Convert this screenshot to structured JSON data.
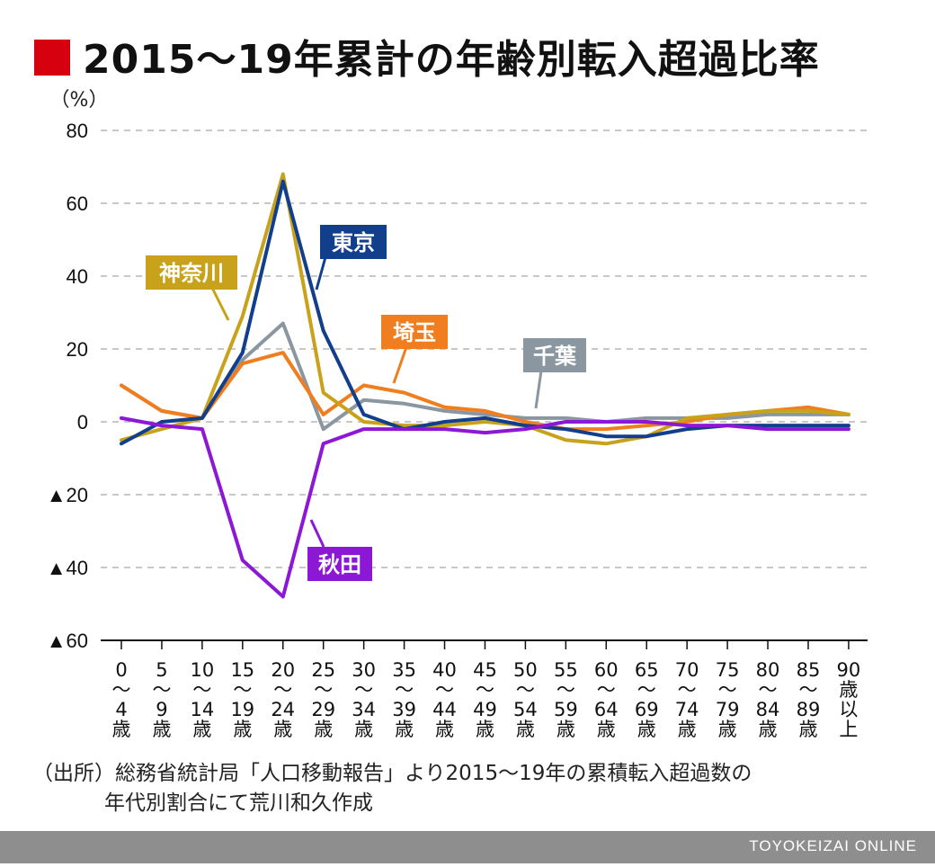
{
  "title": "2015〜19年累計の年齢別転入超過比率",
  "source": {
    "line1": "（出所）総務省統計局「人口移動報告」より2015〜19年の累積転入超過数の",
    "line2": "年代別割合にて荒川和久作成"
  },
  "footer": "TOYOKEIZAI ONLINE",
  "colors": {
    "title_marker": "#d7000f",
    "grid": "#b5b5b5",
    "footer_bg": "#8e8e8e"
  },
  "chart_data": {
    "type": "line",
    "ylabel": "（%）",
    "ylim": [
      -60,
      80
    ],
    "y_ticks": [
      80,
      60,
      40,
      20,
      0,
      -20,
      -40,
      -60
    ],
    "y_tick_labels": [
      "80",
      "60",
      "40",
      "20",
      "0",
      "▲20",
      "▲40",
      "▲60"
    ],
    "grid": "horizontal dashed",
    "categories": [
      [
        "0",
        "〜",
        "4",
        "歳"
      ],
      [
        "5",
        "〜",
        "9",
        "歳"
      ],
      [
        "10",
        "〜",
        "14",
        "歳"
      ],
      [
        "15",
        "〜",
        "19",
        "歳"
      ],
      [
        "20",
        "〜",
        "24",
        "歳"
      ],
      [
        "25",
        "〜",
        "29",
        "歳"
      ],
      [
        "30",
        "〜",
        "34",
        "歳"
      ],
      [
        "35",
        "〜",
        "39",
        "歳"
      ],
      [
        "40",
        "〜",
        "44",
        "歳"
      ],
      [
        "45",
        "〜",
        "49",
        "歳"
      ],
      [
        "50",
        "〜",
        "54",
        "歳"
      ],
      [
        "55",
        "〜",
        "59",
        "歳"
      ],
      [
        "60",
        "〜",
        "64",
        "歳"
      ],
      [
        "65",
        "〜",
        "69",
        "歳"
      ],
      [
        "70",
        "〜",
        "74",
        "歳"
      ],
      [
        "75",
        "〜",
        "79",
        "歳"
      ],
      [
        "80",
        "〜",
        "84",
        "歳"
      ],
      [
        "85",
        "〜",
        "89",
        "歳"
      ],
      [
        "90",
        "歳",
        "以",
        "上"
      ]
    ],
    "series": [
      {
        "name": "東京",
        "color": "#123f8c",
        "values": [
          -6,
          0,
          1,
          19,
          66,
          25,
          2,
          -2,
          0,
          1,
          -1,
          -2,
          -4,
          -4,
          -2,
          -1,
          -1,
          -1,
          -1
        ]
      },
      {
        "name": "神奈川",
        "color": "#c9a21b",
        "values": [
          -5,
          -2,
          1,
          29,
          68,
          8,
          0,
          -1,
          -1,
          0,
          -1,
          -5,
          -6,
          -4,
          1,
          2,
          3,
          3,
          2
        ]
      },
      {
        "name": "埼玉",
        "color": "#f07e1e",
        "values": [
          10,
          3,
          1,
          16,
          19,
          2,
          10,
          8,
          4,
          3,
          0,
          -2,
          -2,
          -1,
          0,
          2,
          3,
          4,
          2
        ]
      },
      {
        "name": "千葉",
        "color": "#8a96a0",
        "values": [
          10,
          3,
          1,
          17,
          27,
          -2,
          6,
          5,
          3,
          2,
          1,
          1,
          0,
          1,
          1,
          1,
          2,
          2,
          2
        ]
      },
      {
        "name": "秋田",
        "color": "#8c18d6",
        "values": [
          1,
          -1,
          -2,
          -38,
          -48,
          -6,
          -2,
          -2,
          -2,
          -3,
          -2,
          0,
          0,
          0,
          -1,
          -1,
          -2,
          -2,
          -2
        ]
      }
    ]
  }
}
